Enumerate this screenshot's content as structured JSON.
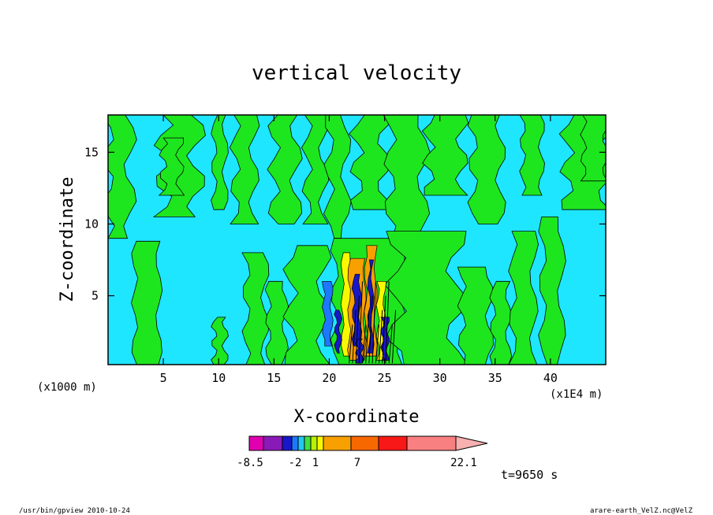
{
  "chart_data": {
    "type": "heatmap",
    "title": "vertical velocity",
    "xlabel": "X-coordinate",
    "ylabel": "Z-coordinate",
    "x_unit_left": "(x1000 m)",
    "x_unit_right": "(x1E4 m)",
    "xlim": [
      0,
      45
    ],
    "ylim": [
      0.2,
      17.6
    ],
    "x_ticks": [
      5,
      10,
      15,
      20,
      25,
      30,
      35,
      40
    ],
    "y_ticks": [
      5,
      10,
      15
    ],
    "colorbar": {
      "labels": [
        {
          "text": "-8.5",
          "value": -8.5
        },
        {
          "text": "-2",
          "value": -2
        },
        {
          "text": "1",
          "value": 1
        },
        {
          "text": "7",
          "value": 7
        },
        {
          "text": "22.1",
          "value": 22.1
        }
      ],
      "colors": [
        "#e000b0",
        "#8a1ab8",
        "#1818c8",
        "#1e78ff",
        "#22c8f0",
        "#40e040",
        "#b8f000",
        "#f8f800",
        "#f8a000",
        "#f86800",
        "#f81818",
        "#f88080"
      ]
    },
    "time_label": "t=9650 s",
    "background_colors": {
      "negative": "#1ee6ff",
      "positive": "#1ee61e"
    }
  },
  "footer": {
    "left": "/usr/bin/gpview   2010-10-24",
    "right": "arare-earth_VelZ.nc@VelZ"
  }
}
